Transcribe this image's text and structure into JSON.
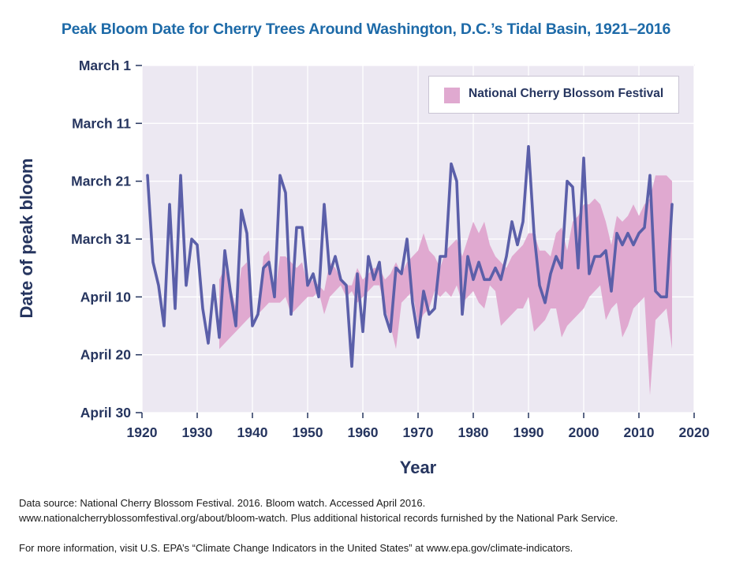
{
  "chart_data": {
    "type": "line",
    "title": "Peak Bloom Date for Cherry Trees Around Washington, D.C.’s Tidal Basin, 1921–2016",
    "xlabel": "Year",
    "ylabel": "Date of peak bloom",
    "xlim": [
      1920,
      2020
    ],
    "x_ticks": [
      "1920",
      "1930",
      "1940",
      "1950",
      "1960",
      "1970",
      "1980",
      "1990",
      "2000",
      "2010",
      "2020"
    ],
    "y_ticks": [
      "March 1",
      "March 11",
      "March 21",
      "March 31",
      "April 10",
      "April 20",
      "April 30"
    ],
    "ylim_dates": [
      "March 1",
      "April 30"
    ],
    "grid": true,
    "legend_position": "top-right",
    "series": [
      {
        "type": "line",
        "color": "#5b5fa9",
        "x": [
          1921,
          1922,
          1923,
          1924,
          1925,
          1926,
          1927,
          1928,
          1929,
          1930,
          1931,
          1932,
          1933,
          1934,
          1935,
          1936,
          1937,
          1938,
          1939,
          1940,
          1941,
          1942,
          1943,
          1944,
          1945,
          1946,
          1947,
          1948,
          1949,
          1950,
          1951,
          1952,
          1953,
          1954,
          1955,
          1956,
          1957,
          1958,
          1959,
          1960,
          1961,
          1962,
          1963,
          1964,
          1965,
          1966,
          1967,
          1968,
          1969,
          1970,
          1971,
          1972,
          1973,
          1974,
          1975,
          1976,
          1977,
          1978,
          1979,
          1980,
          1981,
          1982,
          1983,
          1984,
          1985,
          1986,
          1987,
          1988,
          1989,
          1990,
          1991,
          1992,
          1993,
          1994,
          1995,
          1996,
          1997,
          1998,
          1999,
          2000,
          2001,
          2002,
          2003,
          2004,
          2005,
          2006,
          2007,
          2008,
          2009,
          2010,
          2011,
          2012,
          2013,
          2014,
          2015,
          2016
        ],
        "y": [
          "March 20",
          "April 4",
          "April 8",
          "April 15",
          "March 25",
          "April 12",
          "March 20",
          "April 8",
          "March 31",
          "April 1",
          "April 12",
          "April 18",
          "April 8",
          "April 17",
          "April 2",
          "April 9",
          "April 15",
          "March 26",
          "March 30",
          "April 15",
          "April 13",
          "April 5",
          "April 4",
          "April 10",
          "March 20",
          "March 23",
          "April 13",
          "March 29",
          "March 29",
          "April 8",
          "April 6",
          "April 10",
          "March 25",
          "April 6",
          "April 3",
          "April 7",
          "April 8",
          "April 22",
          "April 6",
          "April 16",
          "April 3",
          "April 7",
          "April 4",
          "April 13",
          "April 16",
          "April 5",
          "April 6",
          "March 31",
          "April 11",
          "April 17",
          "April 9",
          "April 13",
          "April 12",
          "April 3",
          "April 3",
          "March 18",
          "March 21",
          "April 13",
          "April 3",
          "April 7",
          "April 4",
          "April 7",
          "April 7",
          "April 5",
          "April 7",
          "April 3",
          "March 28",
          "April 1",
          "March 28",
          "March 15",
          "March 30",
          "April 8",
          "April 11",
          "April 6",
          "April 3",
          "April 5",
          "March 21",
          "March 22",
          "April 5",
          "March 17",
          "April 6",
          "April 3",
          "April 3",
          "April 2",
          "April 9",
          "March 30",
          "April 1",
          "March 30",
          "April 1",
          "March 30",
          "March 29",
          "March 20",
          "April 9",
          "April 10",
          "April 10",
          "March 25"
        ]
      },
      {
        "type": "area",
        "name": "National Cherry Blossom Festival",
        "color": "#e0a9d0",
        "x": [
          1934,
          1935,
          1936,
          1937,
          1938,
          1939,
          1940,
          1941,
          1942,
          1943,
          1944,
          1945,
          1946,
          1947,
          1948,
          1949,
          1950,
          1951,
          1952,
          1953,
          1954,
          1955,
          1956,
          1957,
          1958,
          1959,
          1960,
          1961,
          1962,
          1963,
          1964,
          1965,
          1966,
          1967,
          1968,
          1969,
          1970,
          1971,
          1972,
          1973,
          1974,
          1975,
          1976,
          1977,
          1978,
          1979,
          1980,
          1981,
          1982,
          1983,
          1984,
          1985,
          1986,
          1987,
          1988,
          1989,
          1990,
          1991,
          1992,
          1993,
          1994,
          1995,
          1996,
          1997,
          1998,
          1999,
          2000,
          2001,
          2002,
          2003,
          2004,
          2005,
          2006,
          2007,
          2008,
          2009,
          2010,
          2011,
          2012,
          2013,
          2014,
          2015,
          2016
        ],
        "start": [
          "April 7",
          "April 5",
          "April 8",
          "April 12",
          "April 5",
          "April 4",
          "April 13",
          "April 13",
          "April 3",
          "April 2",
          "April 10",
          "April 3",
          "April 3",
          "April 4",
          "April 5",
          "April 4",
          "April 8",
          "April 7",
          "April 8",
          "April 9",
          "April 4",
          "April 5",
          "April 7",
          "April 8",
          "April 8",
          "April 5",
          "April 7",
          "April 6",
          "April 5",
          "April 5",
          "April 7",
          "April 6",
          "April 4",
          "April 6",
          "April 4",
          "April 3",
          "April 2",
          "March 30",
          "April 2",
          "April 3",
          "April 5",
          "April 2",
          "April 1",
          "March 31",
          "April 3",
          "March 31",
          "March 28",
          "March 30",
          "March 28",
          "April 1",
          "April 3",
          "April 4",
          "April 5",
          "April 3",
          "April 2",
          "April 1",
          "March 30",
          "March 30",
          "April 2",
          "April 2",
          "April 3",
          "March 30",
          "March 29",
          "April 2",
          "March 28",
          "March 27",
          "March 25",
          "March 25",
          "March 24",
          "March 25",
          "March 28",
          "April 1",
          "March 27",
          "March 28",
          "March 27",
          "March 25",
          "March 27",
          "March 25",
          "March 24",
          "March 20",
          "March 20",
          "March 20",
          "March 21"
        ],
        "end": [
          "April 19",
          "April 18",
          "April 17",
          "April 16",
          "April 15",
          "April 14",
          "April 13",
          "April 13",
          "April 12",
          "April 11",
          "April 11",
          "April 11",
          "April 10",
          "April 13",
          "April 12",
          "April 11",
          "April 10",
          "April 10",
          "April 9",
          "April 13",
          "April 10",
          "April 9",
          "April 8",
          "April 10",
          "April 9",
          "April 11",
          "April 10",
          "April 9",
          "April 8",
          "April 8",
          "April 12",
          "April 15",
          "April 19",
          "April 11",
          "April 10",
          "April 9",
          "April 15",
          "April 13",
          "April 12",
          "April 9",
          "April 10",
          "April 9",
          "April 10",
          "April 8",
          "April 11",
          "April 10",
          "April 9",
          "April 11",
          "April 12",
          "April 8",
          "April 9",
          "April 15",
          "April 14",
          "April 13",
          "April 12",
          "April 12",
          "April 10",
          "April 16",
          "April 15",
          "April 14",
          "April 12",
          "April 12",
          "April 17",
          "April 15",
          "April 14",
          "April 13",
          "April 12",
          "April 10",
          "April 9",
          "April 8",
          "April 14",
          "April 12",
          "April 11",
          "April 17",
          "April 15",
          "April 12",
          "April 11",
          "April 10",
          "April 27",
          "April 14",
          "April 13",
          "April 12",
          "April 19"
        ]
      }
    ]
  },
  "legend": {
    "label": "National Cherry Blossom Festival"
  },
  "source_lines": [
    "Data source: National Cherry Blossom Festival. 2016. Bloom watch. Accessed April 2016.",
    "www.nationalcherryblossomfestival.org/about/bloom-watch. Plus additional historical records furnished by the National Park Service."
  ],
  "info_line": "For more information, visit U.S. EPA’s “Climate Change Indicators in the United States” at www.epa.gov/climate-indicators."
}
